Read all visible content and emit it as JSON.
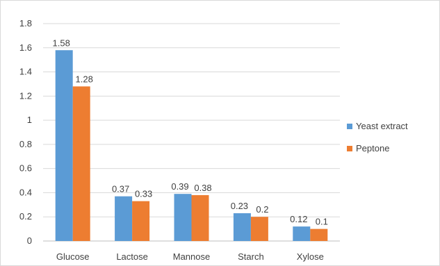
{
  "chart_data": {
    "type": "bar",
    "title": "",
    "xlabel": "",
    "ylabel": "",
    "categories": [
      "Glucose",
      "Lactose",
      "Mannose",
      "Starch",
      "Xylose"
    ],
    "series": [
      {
        "name": "Yeast extract",
        "color": "#5b9bd5",
        "values": [
          1.58,
          0.37,
          0.39,
          0.23,
          0.12
        ]
      },
      {
        "name": "Peptone",
        "color": "#ed7d31",
        "values": [
          1.28,
          0.33,
          0.38,
          0.2,
          0.1
        ]
      }
    ],
    "ylim": [
      0,
      1.8
    ],
    "yticks": [
      0,
      0.2,
      0.4,
      0.6,
      0.8,
      1,
      1.2,
      1.4,
      1.6,
      1.8
    ],
    "grid": true,
    "legend_position": "right",
    "data_labels": true
  }
}
